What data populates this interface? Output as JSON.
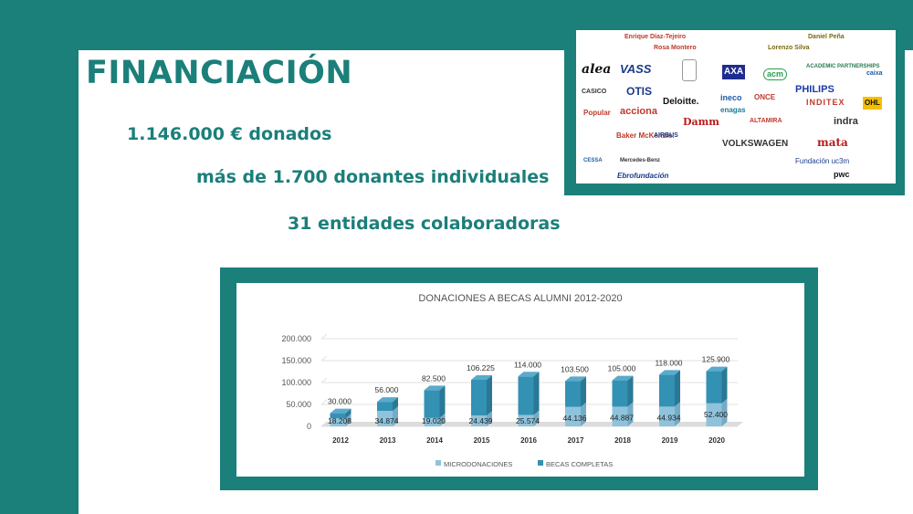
{
  "slide": {
    "title": "FINANCIACIÓN",
    "stats": [
      "1.146.000 € donados",
      "más de 1.700 donantes individuales",
      "31 entidades colaboradoras"
    ]
  },
  "collaborators": {
    "names": [
      "Enrique Díaz-Tejeiro",
      "Daniel Peña",
      "Rosa Montero",
      "Lorenzo Silva"
    ],
    "logos": [
      "alea",
      "VASS",
      "AXA",
      "acm",
      "ACADEMIC PARTNERSHIPS",
      "caixa",
      "CASICO",
      "OTIS",
      "Deloitte.",
      "ineco",
      "ONCE",
      "PHILIPS",
      "Popular",
      "acciona",
      "Damm",
      "enagas",
      "ALTAMIRA",
      "INDITEX",
      "OHL",
      "indra",
      "Baker McKenzie.",
      "AIRBUS",
      "VOLKSWAGEN",
      "mata",
      "CESSA",
      "Mercedes-Benz",
      "Ebrofundación",
      "Fundación uc3m",
      "pwc"
    ]
  },
  "chart_data": {
    "type": "bar",
    "title": "DONACIONES A BECAS ALUMNI 2012-2020",
    "categories": [
      "2012",
      "2013",
      "2014",
      "2015",
      "2016",
      "2017",
      "2018",
      "2019",
      "2020"
    ],
    "series": [
      {
        "name": "MICRODONACIONES",
        "values": [
          18208,
          34874,
          19020,
          24439,
          25574,
          44136,
          44887,
          44934,
          52400
        ],
        "labels": [
          "18.208",
          "34.874",
          "19.020",
          "24.439",
          "25.574",
          "44.136",
          "44.887",
          "44.934",
          "52.400"
        ]
      },
      {
        "name": "BECAS COMPLETAS",
        "values": [
          30000,
          56000,
          82500,
          106225,
          114000,
          103500,
          105000,
          118000,
          125900
        ],
        "labels": [
          "30.000",
          "56.000",
          "82.500",
          "106.225",
          "114.000",
          "103.500",
          "105.000",
          "118.000",
          "125.900"
        ]
      }
    ],
    "yticks": [
      "0",
      "50.000",
      "100.000",
      "150.000",
      "200.000"
    ],
    "ylim": [
      0,
      200000
    ],
    "legend": "bottom",
    "colors": {
      "micro": "#8fc3dc",
      "becas": "#3391b3"
    }
  }
}
